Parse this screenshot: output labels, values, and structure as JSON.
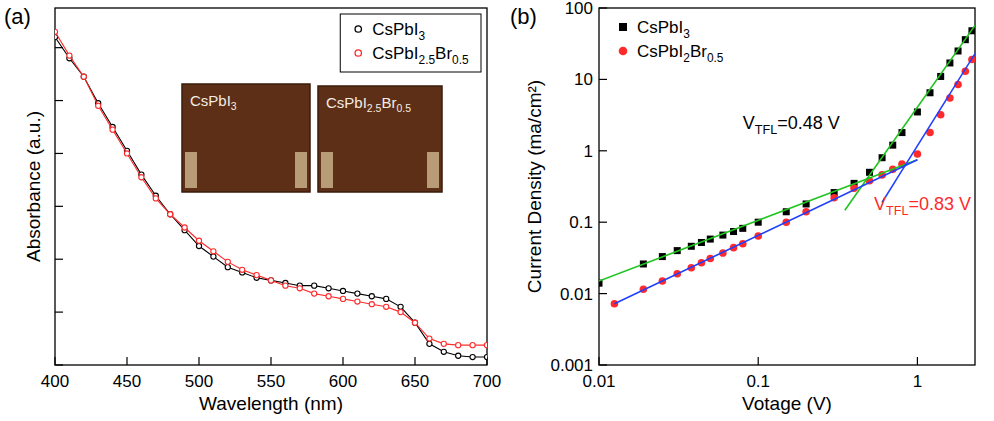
{
  "chart_data": [
    {
      "type": "line",
      "panel_label": "(a)",
      "x_label": "Wavelength (nm)",
      "y_label": "Absorbance (a.u.)",
      "x": [
        400,
        410,
        420,
        430,
        440,
        450,
        460,
        470,
        480,
        490,
        500,
        510,
        520,
        530,
        540,
        550,
        560,
        570,
        580,
        590,
        600,
        610,
        620,
        630,
        640,
        650,
        660,
        670,
        680,
        690,
        700
      ],
      "series": [
        {
          "name": "CsPbI3",
          "color": "#000000",
          "marker": "open_circle",
          "line_style": "solid",
          "values": [
            1.24,
            1.16,
            1.09,
            0.99,
            0.9,
            0.81,
            0.72,
            0.64,
            0.57,
            0.51,
            0.45,
            0.41,
            0.37,
            0.35,
            0.33,
            0.32,
            0.31,
            0.3,
            0.3,
            0.29,
            0.28,
            0.27,
            0.26,
            0.25,
            0.22,
            0.16,
            0.08,
            0.05,
            0.035,
            0.03,
            0.03
          ]
        },
        {
          "name": "CsPbI2.5Br0.5",
          "color": "#ff2a2a",
          "marker": "open_circle",
          "line_style": "solid",
          "values": [
            1.26,
            1.17,
            1.09,
            0.98,
            0.89,
            0.8,
            0.71,
            0.63,
            0.57,
            0.52,
            0.47,
            0.43,
            0.39,
            0.36,
            0.34,
            0.32,
            0.3,
            0.29,
            0.27,
            0.26,
            0.25,
            0.24,
            0.23,
            0.22,
            0.2,
            0.16,
            0.1,
            0.08,
            0.075,
            0.075,
            0.075
          ]
        }
      ],
      "xlim": [
        400,
        700
      ],
      "xticks": [
        400,
        450,
        500,
        550,
        600,
        650,
        700
      ],
      "ylim": [
        0,
        1.35
      ],
      "yticks": [
        0,
        0.2,
        0.4,
        0.6,
        0.8,
        1.0,
        1.2
      ],
      "tick_labels": "x",
      "grid": false,
      "legend": "upper right",
      "inset_labels": [
        "CsPbI3",
        "CsPbI2.5Br0.5"
      ]
    },
    {
      "type": "scatter",
      "panel_label": "(b)",
      "x_label": "Votage (V)",
      "y_label": "Current Density (ma/cm²)",
      "log": true,
      "series": [
        {
          "name": "CsPbI3",
          "color": "#000000",
          "marker": "square",
          "x": [
            0.01,
            0.019,
            0.025,
            0.031,
            0.038,
            0.044,
            0.05,
            0.06,
            0.07,
            0.08,
            0.1,
            0.15,
            0.2,
            0.3,
            0.4,
            0.5,
            0.6,
            0.7,
            0.8,
            1.0,
            1.2,
            1.4,
            1.6,
            1.8,
            2.0,
            2.2
          ],
          "values": [
            0.014,
            0.026,
            0.033,
            0.04,
            0.046,
            0.052,
            0.058,
            0.066,
            0.074,
            0.082,
            0.1,
            0.14,
            0.18,
            0.26,
            0.35,
            0.5,
            0.8,
            1.2,
            1.8,
            3.5,
            6.5,
            11,
            17,
            25,
            36,
            48
          ]
        },
        {
          "name": "CsPbI2Br0.5",
          "color": "#ff2a2a",
          "marker": "circle",
          "x": [
            0.0125,
            0.019,
            0.025,
            0.031,
            0.038,
            0.044,
            0.05,
            0.06,
            0.07,
            0.08,
            0.1,
            0.15,
            0.2,
            0.3,
            0.4,
            0.5,
            0.6,
            0.7,
            0.8,
            1.0,
            1.2,
            1.4,
            1.6,
            1.8,
            2.0,
            2.2
          ],
          "values": [
            0.0072,
            0.0115,
            0.015,
            0.019,
            0.023,
            0.027,
            0.031,
            0.037,
            0.044,
            0.05,
            0.064,
            0.1,
            0.14,
            0.22,
            0.3,
            0.38,
            0.46,
            0.55,
            0.65,
            0.9,
            1.8,
            3.2,
            5.5,
            8.5,
            13,
            19
          ]
        },
        {
          "type": "line",
          "color": "#1fc41f",
          "line_style": "solid",
          "x": [
            0.01,
            1.0
          ],
          "values": [
            0.015,
            0.75
          ]
        },
        {
          "type": "line",
          "color": "#1fc41f",
          "line_style": "solid",
          "x": [
            0.35,
            2.3
          ],
          "values": [
            0.147,
            57
          ]
        },
        {
          "type": "line",
          "color": "#1f3fff",
          "line_style": "solid",
          "x": [
            0.0125,
            1.0
          ],
          "values": [
            0.0072,
            0.75
          ]
        },
        {
          "type": "line",
          "color": "#1f3fff",
          "line_style": "solid",
          "x": [
            0.6,
            2.3
          ],
          "values": [
            0.19,
            23
          ]
        }
      ],
      "xlim": [
        0.01,
        2.3
      ],
      "xticks": [
        0.01,
        0.1,
        1
      ],
      "ylim": [
        0.001,
        100
      ],
      "yticks": [
        0.001,
        0.01,
        0.1,
        1,
        10,
        100
      ],
      "grid": false,
      "legend": "upper left",
      "annotations": [
        {
          "text": "VTFL=0.48 V",
          "color": "#000000"
        },
        {
          "text": "VTFL=0.83 V",
          "color": "#ff2a2a"
        }
      ]
    }
  ]
}
